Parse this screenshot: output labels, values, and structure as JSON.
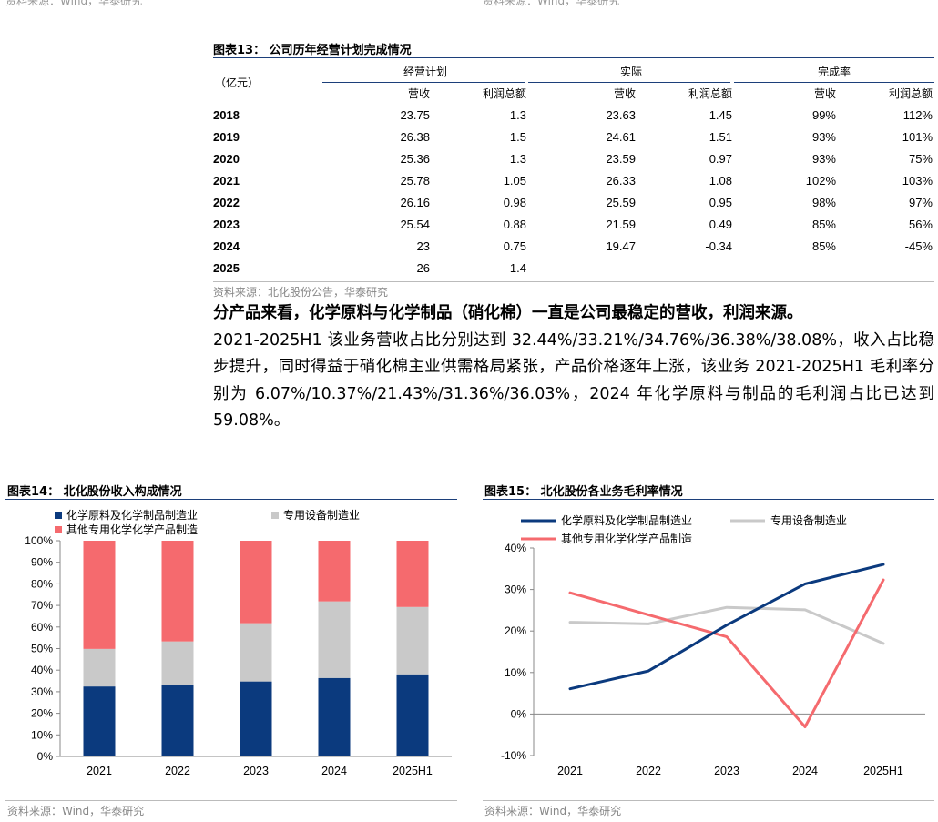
{
  "top_sources": [
    "资料来源：Wind，华泰研究",
    "资料来源：Wind，华泰研究"
  ],
  "table13": {
    "title": "图表13：  公司历年经营计划完成情况",
    "unit": "（亿元）",
    "groups": [
      "经营计划",
      "实际",
      "完成率"
    ],
    "subheaders": [
      "营收",
      "利润总额",
      "营收",
      "利润总额",
      "营收",
      "利润总额"
    ],
    "rows": [
      {
        "year": "2018",
        "cells": [
          "23.75",
          "1.3",
          "23.63",
          "1.45",
          "99%",
          "112%"
        ]
      },
      {
        "year": "2019",
        "cells": [
          "26.38",
          "1.5",
          "24.61",
          "1.51",
          "93%",
          "101%"
        ]
      },
      {
        "year": "2020",
        "cells": [
          "25.36",
          "1.3",
          "23.59",
          "0.97",
          "93%",
          "75%"
        ]
      },
      {
        "year": "2021",
        "cells": [
          "25.78",
          "1.05",
          "26.33",
          "1.08",
          "102%",
          "103%"
        ]
      },
      {
        "year": "2022",
        "cells": [
          "26.16",
          "0.98",
          "25.59",
          "0.95",
          "98%",
          "97%"
        ]
      },
      {
        "year": "2023",
        "cells": [
          "25.54",
          "0.88",
          "21.59",
          "0.49",
          "85%",
          "56%"
        ]
      },
      {
        "year": "2024",
        "cells": [
          "23",
          "0.75",
          "19.47",
          "-0.34",
          "85%",
          "-45%"
        ]
      },
      {
        "year": "2025",
        "cells": [
          "26",
          "1.4",
          "",
          "",
          "",
          ""
        ]
      }
    ],
    "source": "资料来源：北化股份公告，华泰研究"
  },
  "paragraph": {
    "lead": "分产品来看，化学原料与化学制品（硝化棉）一直是公司最稳定的营收，利润来源。",
    "body": "2021-2025H1 该业务营收占比分别达到 32.44%/33.21%/34.76%/36.38%/38.08%，收入占比稳步提升，同时得益于硝化棉主业供需格局紧张，产品价格逐年上涨，该业务 2021-2025H1 毛利率分别为 6.07%/10.37%/21.43%/31.36%/36.03%，2024 年化学原料与制品的毛利润占比已达到 59.08%。"
  },
  "chart14": {
    "title": "图表14：  北化股份收入构成情况",
    "source": "资料来源：Wind，华泰研究"
  },
  "chart15": {
    "title": "图表15：  北化股份各业务毛利率情况",
    "source": "资料来源：Wind，华泰研究"
  },
  "chart_data": [
    {
      "type": "bar",
      "stacked": true,
      "categories": [
        "2021",
        "2022",
        "2023",
        "2024",
        "2025H1"
      ],
      "series": [
        {
          "name": "化学原料及化学制品制造业",
          "color": "#0b3a7e",
          "values": [
            32.44,
            33.21,
            34.76,
            36.38,
            38.08
          ]
        },
        {
          "name": "专用设备制造业",
          "color": "#c9c9c9",
          "values": [
            17.4,
            20.1,
            27.0,
            35.5,
            31.2
          ]
        },
        {
          "name": "其他专用化学化学产品制造",
          "color": "#f56a6e",
          "values": [
            50.16,
            46.69,
            38.24,
            28.12,
            30.72
          ]
        }
      ],
      "ylim": [
        0,
        100
      ],
      "yticks": [
        "0%",
        "10%",
        "20%",
        "30%",
        "40%",
        "50%",
        "60%",
        "70%",
        "80%",
        "90%",
        "100%"
      ],
      "legend": "top-left"
    },
    {
      "type": "line",
      "categories": [
        "2021",
        "2022",
        "2023",
        "2024",
        "2025H1"
      ],
      "series": [
        {
          "name": "化学原料及化学制品制造业",
          "color": "#0b3a7e",
          "values": [
            6.07,
            10.37,
            21.43,
            31.36,
            36.03
          ]
        },
        {
          "name": "专用设备制造业",
          "color": "#c9c9c9",
          "values": [
            22.1,
            21.7,
            25.7,
            25.1,
            17.0
          ]
        },
        {
          "name": "其他专用化学化学产品制造",
          "color": "#f56a6e",
          "values": [
            29.2,
            23.9,
            18.6,
            -3.1,
            32.3
          ]
        }
      ],
      "ylim": [
        -10,
        40
      ],
      "yticks": [
        "-10%",
        "0%",
        "10%",
        "20%",
        "30%",
        "40%"
      ],
      "legend": "top"
    }
  ]
}
